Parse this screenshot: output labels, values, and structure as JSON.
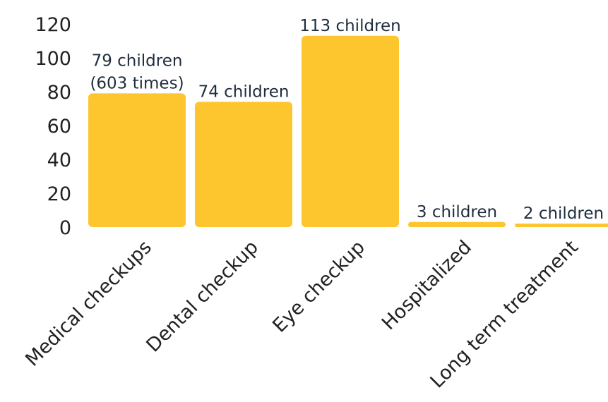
{
  "chart_data": {
    "type": "bar",
    "title": "",
    "xlabel": "",
    "ylabel": "",
    "ylim": [
      0,
      120
    ],
    "yticks": [
      0,
      20,
      40,
      60,
      80,
      100,
      120
    ],
    "grid": false,
    "legend": "none",
    "bar_color": "#FDC62F",
    "categories": [
      "Medical checkups",
      "Dental checkup",
      "Eye checkup",
      "Hospitalized",
      "Long term treatment"
    ],
    "values": [
      79,
      74,
      113,
      3,
      2
    ],
    "data_labels": [
      [
        "79 children",
        "(603 times)"
      ],
      [
        "74 children"
      ],
      [
        "113 children"
      ],
      [
        "3 children"
      ],
      [
        "2 children"
      ]
    ]
  }
}
